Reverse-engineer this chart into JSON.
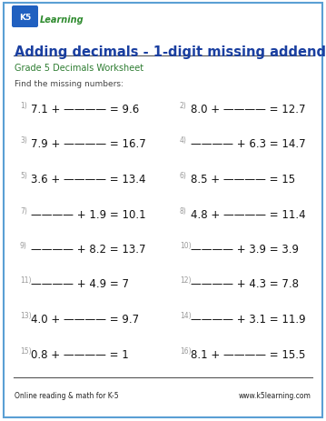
{
  "title": "Adding decimals - 1-digit missing addend",
  "subtitle": "Grade 5 Decimals Worksheet",
  "instruction": "Find the missing numbers:",
  "title_color": "#1a3fa0",
  "subtitle_color": "#2e7d32",
  "instruction_color": "#444444",
  "border_color": "#5a9fd4",
  "footer_left": "Online reading & math for K-5",
  "footer_right": "www.k5learning.com",
  "problems": [
    {
      "num": "1)",
      "expr": "7.1 + ———— = 9.6",
      "col": 0,
      "row": 0
    },
    {
      "num": "2)",
      "expr": "8.0 + ———— = 12.7",
      "col": 1,
      "row": 0
    },
    {
      "num": "3)",
      "expr": "7.9 + ———— = 16.7",
      "col": 0,
      "row": 1
    },
    {
      "num": "4)",
      "expr": "———— + 6.3 = 14.7",
      "col": 1,
      "row": 1
    },
    {
      "num": "5)",
      "expr": "3.6 + ———— = 13.4",
      "col": 0,
      "row": 2
    },
    {
      "num": "6)",
      "expr": "8.5 + ———— = 15",
      "col": 1,
      "row": 2
    },
    {
      "num": "7)",
      "expr": "———— + 1.9 = 10.1",
      "col": 0,
      "row": 3
    },
    {
      "num": "8)",
      "expr": "4.8 + ———— = 11.4",
      "col": 1,
      "row": 3
    },
    {
      "num": "9)",
      "expr": "———— + 8.2 = 13.7",
      "col": 0,
      "row": 4
    },
    {
      "num": "10)",
      "expr": "———— + 3.9 = 3.9",
      "col": 1,
      "row": 4
    },
    {
      "num": "11)",
      "expr": "———— + 4.9 = 7",
      "col": 0,
      "row": 5
    },
    {
      "num": "12)",
      "expr": "———— + 4.3 = 7.8",
      "col": 1,
      "row": 5
    },
    {
      "num": "13)",
      "expr": "4.0 + ———— = 9.7",
      "col": 0,
      "row": 6
    },
    {
      "num": "14)",
      "expr": "———— + 3.1 = 11.9",
      "col": 1,
      "row": 6
    },
    {
      "num": "15)",
      "expr": "0.8 + ———— = 1",
      "col": 0,
      "row": 7
    },
    {
      "num": "16)",
      "expr": "8.1 + ———— = 15.5",
      "col": 1,
      "row": 7
    }
  ],
  "bg_color": "#ffffff",
  "text_color": "#222222",
  "problem_color": "#111111",
  "num_color": "#999999",
  "line_color": "#555555"
}
